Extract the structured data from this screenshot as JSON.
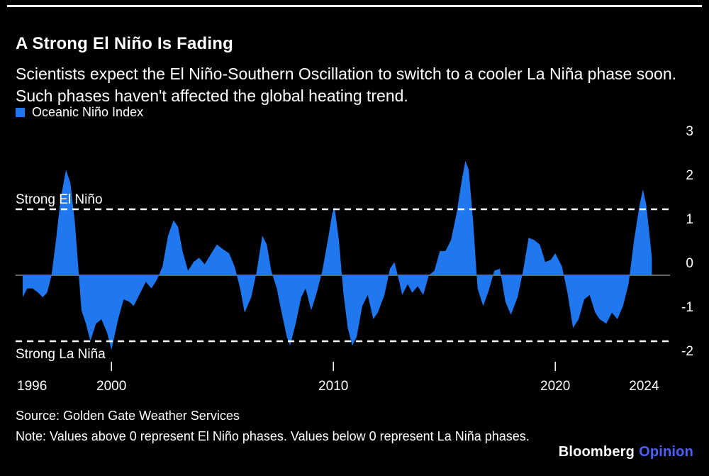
{
  "colors": {
    "series": "#1f78f0",
    "zero_line": "#656565",
    "threshold_line": "#ffffff",
    "text": "#ffffff",
    "background": "#000000",
    "opinion_brand": "#4e61f6"
  },
  "header": {
    "title": "A Strong El Niño Is Fading",
    "subtitle": "Scientists expect the El Niño-Southern Oscillation to switch to a cooler La Niña phase soon. Such phases haven't affected the global heating trend.",
    "legend_label": "Oceanic Niño Index"
  },
  "chart_data": {
    "type": "area",
    "series_name": "Oceanic Niño Index",
    "xlabel": "",
    "ylabel": "",
    "xlim": [
      1996,
      2024.4
    ],
    "ylim": [
      -2.3,
      3.2
    ],
    "baseline": 0,
    "grid": false,
    "yticks": [
      3,
      2,
      1,
      0,
      -1,
      -2
    ],
    "xticks": [
      {
        "label": "1996",
        "year": 1996,
        "tick": false,
        "anchor": "start"
      },
      {
        "label": "2000",
        "year": 2000,
        "tick": true,
        "anchor": "middle"
      },
      {
        "label": "2010",
        "year": 2010,
        "tick": true,
        "anchor": "middle"
      },
      {
        "label": "2020",
        "year": 2020,
        "tick": true,
        "anchor": "middle"
      },
      {
        "label": "2024",
        "year": 2024,
        "tick": false,
        "anchor": "middle"
      }
    ],
    "thresholds": [
      {
        "value": 1.5,
        "label": "Strong El Niño",
        "name": "strong-el-nino",
        "position": "above"
      },
      {
        "value": -1.5,
        "label": "Strong La Niña",
        "name": "strong-la-nina",
        "position": "below"
      }
    ],
    "points": [
      [
        1996.0,
        -0.5
      ],
      [
        1996.2,
        -0.3
      ],
      [
        1996.45,
        -0.3
      ],
      [
        1996.7,
        -0.4
      ],
      [
        1996.9,
        -0.5
      ],
      [
        1997.1,
        -0.4
      ],
      [
        1997.3,
        0.0
      ],
      [
        1997.5,
        0.8
      ],
      [
        1997.7,
        1.7
      ],
      [
        1997.95,
        2.4
      ],
      [
        1998.15,
        2.1
      ],
      [
        1998.35,
        1.2
      ],
      [
        1998.5,
        0.2
      ],
      [
        1998.65,
        -0.8
      ],
      [
        1998.85,
        -1.1
      ],
      [
        1999.05,
        -1.5
      ],
      [
        1999.3,
        -1.1
      ],
      [
        1999.55,
        -1.0
      ],
      [
        1999.8,
        -1.3
      ],
      [
        2000.0,
        -1.7
      ],
      [
        2000.3,
        -1.0
      ],
      [
        2000.55,
        -0.55
      ],
      [
        2000.8,
        -0.6
      ],
      [
        2001.0,
        -0.7
      ],
      [
        2001.3,
        -0.4
      ],
      [
        2001.55,
        -0.15
      ],
      [
        2001.8,
        -0.3
      ],
      [
        2002.05,
        -0.1
      ],
      [
        2002.3,
        0.2
      ],
      [
        2002.55,
        0.9
      ],
      [
        2002.8,
        1.25
      ],
      [
        2003.0,
        1.1
      ],
      [
        2003.2,
        0.55
      ],
      [
        2003.45,
        0.1
      ],
      [
        2003.7,
        0.3
      ],
      [
        2003.95,
        0.4
      ],
      [
        2004.2,
        0.25
      ],
      [
        2004.5,
        0.5
      ],
      [
        2004.75,
        0.7
      ],
      [
        2005.0,
        0.6
      ],
      [
        2005.3,
        0.5
      ],
      [
        2005.55,
        0.2
      ],
      [
        2005.8,
        -0.3
      ],
      [
        2006.0,
        -0.85
      ],
      [
        2006.3,
        -0.5
      ],
      [
        2006.55,
        0.1
      ],
      [
        2006.8,
        0.9
      ],
      [
        2007.0,
        0.7
      ],
      [
        2007.2,
        0.1
      ],
      [
        2007.45,
        -0.3
      ],
      [
        2007.65,
        -0.8
      ],
      [
        2007.9,
        -1.4
      ],
      [
        2008.05,
        -1.6
      ],
      [
        2008.3,
        -1.1
      ],
      [
        2008.55,
        -0.5
      ],
      [
        2008.75,
        -0.3
      ],
      [
        2009.0,
        -0.8
      ],
      [
        2009.25,
        -0.4
      ],
      [
        2009.5,
        0.1
      ],
      [
        2009.75,
        0.8
      ],
      [
        2009.95,
        1.4
      ],
      [
        2010.05,
        1.55
      ],
      [
        2010.25,
        0.8
      ],
      [
        2010.45,
        -0.4
      ],
      [
        2010.65,
        -1.2
      ],
      [
        2010.85,
        -1.6
      ],
      [
        2011.05,
        -1.4
      ],
      [
        2011.3,
        -0.7
      ],
      [
        2011.55,
        -0.45
      ],
      [
        2011.8,
        -1.0
      ],
      [
        2012.0,
        -0.85
      ],
      [
        2012.3,
        -0.45
      ],
      [
        2012.55,
        0.15
      ],
      [
        2012.75,
        0.3
      ],
      [
        2012.95,
        -0.1
      ],
      [
        2013.1,
        -0.45
      ],
      [
        2013.35,
        -0.2
      ],
      [
        2013.55,
        -0.4
      ],
      [
        2013.8,
        -0.25
      ],
      [
        2014.05,
        -0.45
      ],
      [
        2014.3,
        0.0
      ],
      [
        2014.55,
        0.1
      ],
      [
        2014.8,
        0.55
      ],
      [
        2015.05,
        0.55
      ],
      [
        2015.3,
        0.8
      ],
      [
        2015.55,
        1.4
      ],
      [
        2015.8,
        2.2
      ],
      [
        2015.95,
        2.6
      ],
      [
        2016.1,
        2.4
      ],
      [
        2016.3,
        1.2
      ],
      [
        2016.5,
        -0.3
      ],
      [
        2016.75,
        -0.7
      ],
      [
        2017.0,
        -0.35
      ],
      [
        2017.25,
        0.1
      ],
      [
        2017.5,
        0.15
      ],
      [
        2017.75,
        -0.6
      ],
      [
        2018.0,
        -0.9
      ],
      [
        2018.3,
        -0.5
      ],
      [
        2018.55,
        0.1
      ],
      [
        2018.8,
        0.85
      ],
      [
        2019.05,
        0.8
      ],
      [
        2019.3,
        0.7
      ],
      [
        2019.55,
        0.3
      ],
      [
        2019.8,
        0.35
      ],
      [
        2020.0,
        0.5
      ],
      [
        2020.3,
        0.2
      ],
      [
        2020.55,
        -0.4
      ],
      [
        2020.8,
        -1.2
      ],
      [
        2021.05,
        -1.0
      ],
      [
        2021.3,
        -0.55
      ],
      [
        2021.55,
        -0.45
      ],
      [
        2021.8,
        -0.85
      ],
      [
        2022.0,
        -1.0
      ],
      [
        2022.3,
        -1.1
      ],
      [
        2022.55,
        -0.85
      ],
      [
        2022.8,
        -1.0
      ],
      [
        2023.05,
        -0.7
      ],
      [
        2023.3,
        -0.2
      ],
      [
        2023.55,
        0.8
      ],
      [
        2023.8,
        1.6
      ],
      [
        2023.95,
        1.95
      ],
      [
        2024.1,
        1.6
      ],
      [
        2024.25,
        0.9
      ],
      [
        2024.35,
        0.4
      ]
    ]
  },
  "footer": {
    "source": "Source: Golden Gate Weather Services",
    "note": "Note: Values above 0 represent El Niño phases. Values below 0 represent La Niña phases.",
    "brand_bloomberg": "Bloomberg",
    "brand_opinion": "Opinion"
  }
}
